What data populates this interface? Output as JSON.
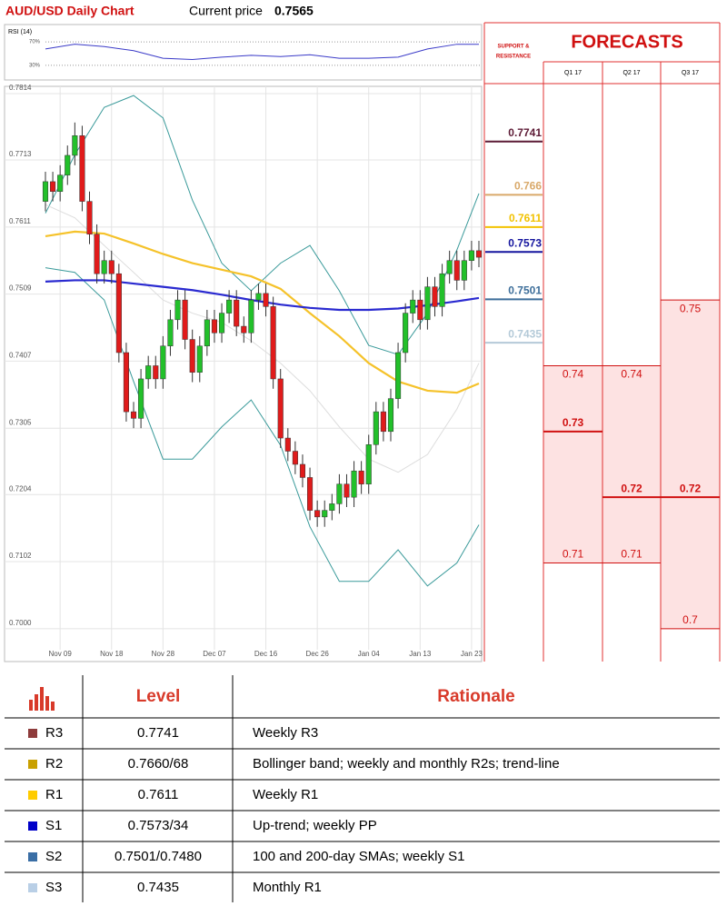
{
  "header": {
    "title": "AUD/USD Daily Chart",
    "price_label": "Current price",
    "price": "0.7565"
  },
  "chart_data": [
    {
      "type": "candlestick",
      "categories": [
        null,
        null,
        "Nov 09",
        null,
        null,
        null,
        null,
        null,
        null,
        "Nov 18",
        null,
        null,
        null,
        null,
        null,
        null,
        "Nov 28",
        null,
        null,
        null,
        null,
        null,
        null,
        "Dec 07",
        null,
        null,
        null,
        null,
        null,
        null,
        "Dec 16",
        null,
        null,
        null,
        null,
        null,
        null,
        "Dec 26",
        null,
        null,
        null,
        null,
        null,
        null,
        "Jan 04",
        null,
        null,
        null,
        null,
        null,
        null,
        "Jan 13",
        null,
        null,
        null,
        null,
        null,
        null,
        "Jan 23",
        null
      ],
      "open": [
        0.765,
        0.768,
        0.7665,
        0.769,
        0.772,
        0.775,
        0.765,
        0.76,
        0.754,
        0.756,
        0.754,
        0.742,
        0.733,
        0.732,
        0.738,
        0.74,
        0.738,
        0.743,
        0.747,
        0.75,
        0.744,
        0.739,
        0.743,
        0.747,
        0.745,
        0.748,
        0.75,
        0.746,
        0.745,
        0.75,
        0.751,
        0.749,
        0.738,
        0.729,
        0.727,
        0.725,
        0.723,
        0.718,
        0.717,
        0.718,
        0.719,
        0.722,
        0.72,
        0.724,
        0.722,
        0.728,
        0.733,
        0.73,
        0.735,
        0.742,
        0.748,
        0.75,
        0.747,
        0.752,
        0.749,
        0.754,
        0.756,
        0.753,
        0.756,
        0.7575
      ],
      "high": [
        0.7695,
        0.7695,
        0.7705,
        0.7735,
        0.777,
        0.7765,
        0.7665,
        0.7615,
        0.7575,
        0.7575,
        0.7555,
        0.7435,
        0.7345,
        0.7395,
        0.7415,
        0.7415,
        0.7445,
        0.7485,
        0.7515,
        0.7515,
        0.7455,
        0.7445,
        0.7485,
        0.7485,
        0.7495,
        0.7515,
        0.7515,
        0.7475,
        0.7515,
        0.7525,
        0.7525,
        0.7505,
        0.7395,
        0.7305,
        0.7285,
        0.7265,
        0.7245,
        0.7195,
        0.7195,
        0.7205,
        0.7235,
        0.7235,
        0.7255,
        0.7255,
        0.7295,
        0.7345,
        0.7345,
        0.7365,
        0.7435,
        0.7495,
        0.7515,
        0.7515,
        0.7535,
        0.7535,
        0.7555,
        0.7575,
        0.7575,
        0.7575,
        0.759,
        0.759
      ],
      "low": [
        0.7635,
        0.765,
        0.765,
        0.7675,
        0.7705,
        0.7635,
        0.7585,
        0.7525,
        0.7525,
        0.7525,
        0.7405,
        0.7315,
        0.7305,
        0.7305,
        0.7365,
        0.7365,
        0.7365,
        0.7415,
        0.7455,
        0.7425,
        0.7375,
        0.7375,
        0.7415,
        0.7435,
        0.7435,
        0.7465,
        0.7445,
        0.7435,
        0.7435,
        0.7485,
        0.7475,
        0.7365,
        0.7275,
        0.7255,
        0.7235,
        0.7215,
        0.7165,
        0.7155,
        0.7155,
        0.7165,
        0.7175,
        0.7185,
        0.7185,
        0.7205,
        0.7205,
        0.7265,
        0.7285,
        0.7285,
        0.7335,
        0.7405,
        0.7465,
        0.7455,
        0.7455,
        0.7475,
        0.7475,
        0.7525,
        0.7515,
        0.7515,
        0.7545,
        0.755
      ],
      "close": [
        0.768,
        0.7665,
        0.769,
        0.772,
        0.775,
        0.765,
        0.76,
        0.754,
        0.756,
        0.754,
        0.742,
        0.733,
        0.732,
        0.738,
        0.74,
        0.738,
        0.743,
        0.747,
        0.75,
        0.744,
        0.739,
        0.743,
        0.747,
        0.745,
        0.748,
        0.75,
        0.746,
        0.745,
        0.75,
        0.751,
        0.749,
        0.738,
        0.729,
        0.727,
        0.725,
        0.723,
        0.718,
        0.717,
        0.718,
        0.719,
        0.722,
        0.72,
        0.724,
        0.722,
        0.728,
        0.733,
        0.73,
        0.735,
        0.742,
        0.748,
        0.75,
        0.747,
        0.752,
        0.749,
        0.754,
        0.756,
        0.753,
        0.756,
        0.7575,
        0.7565
      ],
      "up_color": "#22c02a",
      "down_color": "#e01b1b",
      "ylim": [
        0.6968,
        0.7825
      ],
      "yticks": [
        0.7814,
        0.7713,
        0.7611,
        0.7509,
        0.7407,
        0.7305,
        0.7204,
        0.7102,
        {
          "value": 0.7,
          "label": "0.7000"
        }
      ],
      "grid": true,
      "overlays": [
        {
          "color": "#3a9a9a",
          "x": [
            0,
            4,
            8,
            12,
            16,
            20,
            24,
            28,
            32,
            36,
            40,
            44,
            48,
            52,
            56,
            59
          ],
          "values": [
            0.7632,
            0.7721,
            0.7793,
            0.7811,
            0.7777,
            0.7652,
            0.7556,
            0.7514,
            0.7556,
            0.7583,
            0.7514,
            0.7431,
            0.7417,
            0.748,
            0.7576,
            0.7662
          ]
        },
        {
          "color": "#3a9a9a",
          "x": [
            0,
            4,
            8,
            12,
            16,
            20,
            24,
            28,
            32,
            36,
            40,
            44,
            48,
            52,
            56,
            59
          ],
          "values": [
            0.7549,
            0.7542,
            0.75,
            0.7376,
            0.7258,
            0.7258,
            0.7307,
            0.7348,
            0.7279,
            0.7155,
            0.7072,
            0.7072,
            0.712,
            0.7065,
            0.71,
            0.7158
          ]
        },
        {
          "color": "#dddddd",
          "x": [
            0,
            4,
            8,
            12,
            16,
            20,
            24,
            28,
            32,
            36,
            40,
            44,
            48,
            52,
            56,
            59
          ],
          "values": [
            0.7645,
            0.7625,
            0.7583,
            0.7542,
            0.75,
            0.748,
            0.7466,
            0.7438,
            0.7404,
            0.7362,
            0.7307,
            0.7258,
            0.7238,
            0.7265,
            0.7334,
            0.7404
          ]
        },
        {
          "color": "#f5c22a",
          "x": [
            0,
            4,
            8,
            12,
            16,
            20,
            24,
            28,
            32,
            36,
            40,
            44,
            48,
            52,
            56,
            59
          ],
          "values": [
            0.7597,
            0.7604,
            0.7601,
            0.7586,
            0.757,
            0.7556,
            0.7546,
            0.7536,
            0.7517,
            0.748,
            0.7445,
            0.7404,
            0.7376,
            0.7362,
            0.7359,
            0.7373
          ]
        },
        {
          "color": "#2a2ad0",
          "x": [
            0,
            4,
            8,
            12,
            16,
            20,
            24,
            28,
            32,
            36,
            40,
            44,
            48,
            52,
            56,
            59
          ],
          "values": [
            0.7528,
            0.753,
            0.753,
            0.7525,
            0.752,
            0.7515,
            0.7508,
            0.75,
            0.7493,
            0.7488,
            0.7485,
            0.7485,
            0.7487,
            0.7492,
            0.7498,
            0.7503
          ]
        }
      ],
      "support_resistance": {
        "title_lines": [
          "SUPPORT &",
          "RESISTANCE"
        ],
        "levels": [
          0.7741,
          0.766,
          0.7611,
          0.7573,
          0.7501,
          0.7435
        ],
        "colors": [
          "#5c1a35",
          "#d9a96a",
          "#f2c200",
          "#14149e",
          "#3d6e9a",
          "#b4cad8"
        ]
      }
    },
    {
      "type": "line",
      "title": "RSI (14)",
      "color": "#3a3ac8",
      "x": [
        0,
        4,
        8,
        12,
        16,
        20,
        24,
        28,
        32,
        36,
        40,
        44,
        48,
        52,
        56,
        59
      ],
      "values": [
        58,
        66,
        62,
        55,
        42,
        40,
        44,
        47,
        45,
        48,
        42,
        42,
        44,
        58,
        66,
        66
      ],
      "ylim": [
        5,
        95
      ],
      "yticks": [
        {
          "value": 70,
          "label": "70%"
        },
        {
          "value": 30,
          "label": "30%"
        }
      ]
    }
  ],
  "forecasts": {
    "title": "FORECASTS",
    "columns": [
      {
        "name": "Q1 17",
        "values": [
          0.74,
          0.73,
          0.71
        ]
      },
      {
        "name": "Q2 17",
        "values": [
          0.74,
          0.72,
          0.71
        ]
      },
      {
        "name": "Q3 17",
        "values": [
          0.75,
          0.72,
          0.7
        ]
      }
    ]
  },
  "table": {
    "header": [
      "Level",
      "Rationale"
    ],
    "colors": [
      "#8e3b3b",
      "#c9a000",
      "#ffcc00",
      "#0000c8",
      "#3a6ea5",
      "#b9cfe6"
    ],
    "rows": [
      [
        "R3",
        "0.7741",
        "Weekly R3"
      ],
      [
        "R2",
        "0.7660/68",
        "Bollinger band; weekly and monthly R2s; trend-line"
      ],
      [
        "R1",
        "0.7611",
        "Weekly R1"
      ],
      [
        "S1",
        "0.7573/34",
        "Up-trend; weekly PP"
      ],
      [
        "S2",
        "0.7501/0.7480",
        "100 and 200-day SMAs; weekly S1"
      ],
      [
        "S3",
        "0.7435",
        "Monthly R1"
      ]
    ]
  }
}
